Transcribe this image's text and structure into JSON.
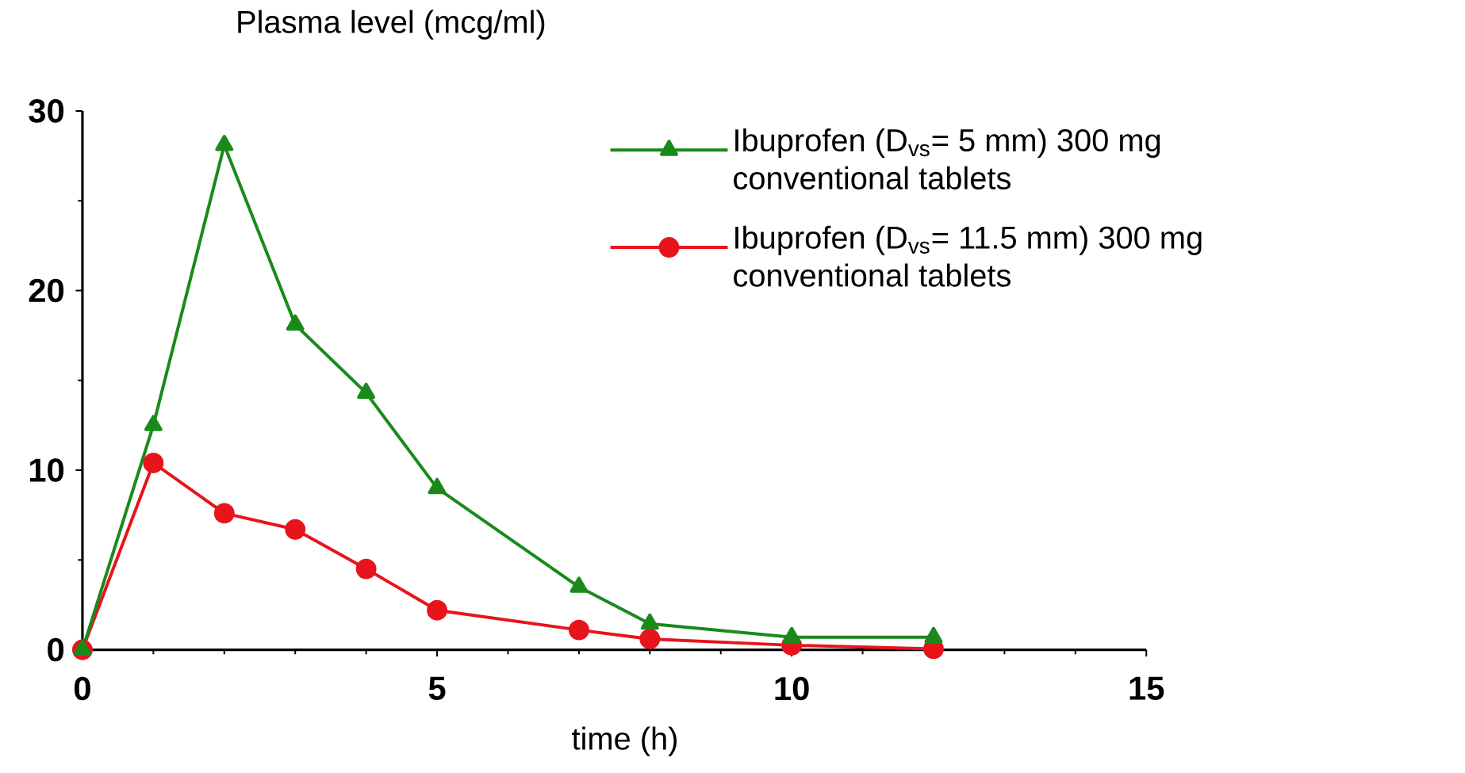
{
  "chart_data": {
    "type": "line",
    "xlabel": "time (h)",
    "ylabel": "Plasma level (mcg/ml)",
    "xlim": [
      0,
      15
    ],
    "ylim": [
      0,
      30
    ],
    "xticks": [
      0,
      5,
      10,
      15
    ],
    "yticks": [
      0,
      10,
      20,
      30
    ],
    "grid": false,
    "legend": "top right",
    "line_style": "solid",
    "series": [
      {
        "name": "Ibuprofen (D$_{vs}$= 5 mm) 300 mg conventional tablets",
        "color": "#1a8a1a",
        "marker": "triangle",
        "x": [
          0,
          1,
          2,
          3,
          4,
          5,
          7,
          8,
          10,
          12
        ],
        "values": [
          0,
          12.5,
          28.1,
          18.1,
          14.3,
          9.0,
          3.5,
          1.45,
          0.7,
          0.7
        ]
      },
      {
        "name": "Ibuprofen (D$_{vs}$= 11.5 mm) 300 mg conventional tablets",
        "color": "#e8141c",
        "marker": "circle",
        "x": [
          0,
          1,
          2,
          3,
          4,
          5,
          7,
          8,
          10,
          12
        ],
        "values": [
          0,
          10.4,
          7.6,
          6.7,
          4.5,
          2.2,
          1.1,
          0.6,
          0.25,
          0.05
        ]
      }
    ]
  }
}
